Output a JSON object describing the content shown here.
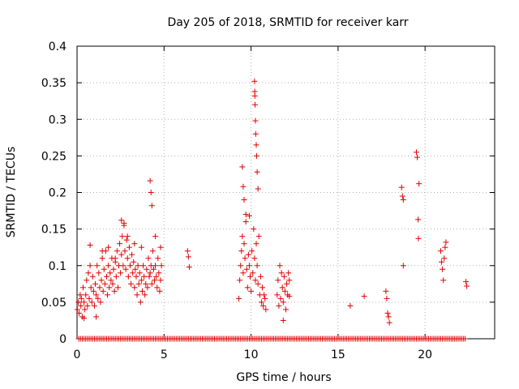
{
  "chart_data": {
    "type": "scatter",
    "title": "Day 205 of 2018, SRMTID for receiver karr",
    "xlabel": "GPS time / hours",
    "ylabel": "SRMTID / TECUs",
    "xlim": [
      0,
      24
    ],
    "ylim": [
      0,
      0.4
    ],
    "xticks": [
      0,
      5,
      10,
      15,
      20
    ],
    "xtick_labels": [
      "0",
      "5",
      "10",
      "15",
      "20"
    ],
    "yticks": [
      0,
      0.05,
      0.1,
      0.15,
      0.2,
      0.25,
      0.3,
      0.35,
      0.4
    ],
    "ytick_labels": [
      "0",
      "0.05",
      "0.1",
      "0.15",
      "0.2",
      "0.25",
      "0.3",
      "0.35",
      "0.4"
    ],
    "grid": true,
    "marker": "+",
    "color": "#e00000",
    "series": [
      {
        "name": "SRMTID",
        "x": [
          0.02,
          0.08,
          0.12,
          0.18,
          0.22,
          0.25,
          0.3,
          0.35,
          0.4,
          0.45,
          0.5,
          0.55,
          0.6,
          0.65,
          0.7,
          0.75,
          0.8,
          0.85,
          0.9,
          0.95,
          1.0,
          1.05,
          1.1,
          1.15,
          1.2,
          1.25,
          1.3,
          1.35,
          1.4,
          1.45,
          1.5,
          1.55,
          1.6,
          1.65,
          1.7,
          1.75,
          1.8,
          1.85,
          1.9,
          1.95,
          2.0,
          2.05,
          2.1,
          2.15,
          2.2,
          2.25,
          2.3,
          2.35,
          2.4,
          2.45,
          2.5,
          2.55,
          2.6,
          2.65,
          2.7,
          2.75,
          2.8,
          2.85,
          2.9,
          2.95,
          3.0,
          3.05,
          3.1,
          3.15,
          3.2,
          3.25,
          3.3,
          3.35,
          3.4,
          3.45,
          3.5,
          3.55,
          3.6,
          3.65,
          3.7,
          3.75,
          3.8,
          3.85,
          3.9,
          3.95,
          4.0,
          4.05,
          4.1,
          4.15,
          4.2,
          4.25,
          4.3,
          4.35,
          4.4,
          4.45,
          4.5,
          4.55,
          4.6,
          4.65,
          4.7,
          4.75,
          4.8,
          4.85,
          0.4,
          0.75,
          1.1,
          1.45,
          1.8,
          2.2,
          2.55,
          2.7,
          2.9,
          3.3,
          3.7,
          4.2,
          4.25,
          4.3,
          4.5,
          4.8,
          6.35,
          6.4,
          6.45,
          9.3,
          9.35,
          9.4,
          9.45,
          9.5,
          9.55,
          9.6,
          9.65,
          9.7,
          9.75,
          9.8,
          9.85,
          9.9,
          9.95,
          10.0,
          10.05,
          10.1,
          10.15,
          10.2,
          10.25,
          10.3,
          10.35,
          10.4,
          10.45,
          10.5,
          10.55,
          10.6,
          10.65,
          10.7,
          10.75,
          10.8,
          10.85,
          9.5,
          9.55,
          9.6,
          9.7,
          9.9,
          10.2,
          10.21,
          10.22,
          10.23,
          10.25,
          10.27,
          10.3,
          10.32,
          10.35,
          10.4,
          11.5,
          11.55,
          11.6,
          11.65,
          11.7,
          11.75,
          11.8,
          11.85,
          11.9,
          11.95,
          12.0,
          12.05,
          12.1,
          12.15,
          12.2,
          11.85,
          12.2,
          15.7,
          16.5,
          17.75,
          17.8,
          17.85,
          17.9,
          17.95,
          18.65,
          18.7,
          18.75,
          18.75,
          19.5,
          19.55,
          19.6,
          19.62,
          19.65,
          20.9,
          20.95,
          21.0,
          21.05,
          21.1,
          21.15,
          21.2,
          22.35,
          22.4
        ],
        "y": [
          0.04,
          0.05,
          0.035,
          0.06,
          0.045,
          0.055,
          0.03,
          0.07,
          0.05,
          0.04,
          0.06,
          0.08,
          0.045,
          0.09,
          0.055,
          0.1,
          0.07,
          0.05,
          0.085,
          0.065,
          0.045,
          0.075,
          0.06,
          0.1,
          0.055,
          0.09,
          0.07,
          0.05,
          0.08,
          0.11,
          0.065,
          0.095,
          0.075,
          0.12,
          0.085,
          0.06,
          0.1,
          0.07,
          0.09,
          0.08,
          0.11,
          0.075,
          0.095,
          0.065,
          0.105,
          0.085,
          0.12,
          0.07,
          0.1,
          0.13,
          0.09,
          0.115,
          0.14,
          0.1,
          0.155,
          0.12,
          0.095,
          0.135,
          0.11,
          0.085,
          0.125,
          0.1,
          0.075,
          0.115,
          0.09,
          0.105,
          0.07,
          0.095,
          0.085,
          0.06,
          0.1,
          0.075,
          0.09,
          0.05,
          0.08,
          0.065,
          0.1,
          0.085,
          0.06,
          0.075,
          0.095,
          0.07,
          0.11,
          0.085,
          0.09,
          0.1,
          0.075,
          0.12,
          0.095,
          0.08,
          0.1,
          0.085,
          0.07,
          0.11,
          0.09,
          0.065,
          0.08,
          0.1,
          0.028,
          0.128,
          0.03,
          0.12,
          0.125,
          0.11,
          0.162,
          0.158,
          0.14,
          0.13,
          0.125,
          0.216,
          0.2,
          0.182,
          0.14,
          0.125,
          0.12,
          0.112,
          0.098,
          0.055,
          0.08,
          0.1,
          0.12,
          0.14,
          0.09,
          0.13,
          0.11,
          0.16,
          0.095,
          0.07,
          0.115,
          0.1,
          0.085,
          0.065,
          0.12,
          0.09,
          0.15,
          0.11,
          0.08,
          0.13,
          0.1,
          0.075,
          0.14,
          0.06,
          0.085,
          0.05,
          0.07,
          0.045,
          0.06,
          0.055,
          0.04,
          0.235,
          0.208,
          0.19,
          0.17,
          0.168,
          0.352,
          0.338,
          0.332,
          0.32,
          0.298,
          0.28,
          0.265,
          0.25,
          0.228,
          0.205,
          0.06,
          0.08,
          0.045,
          0.1,
          0.055,
          0.09,
          0.07,
          0.05,
          0.085,
          0.065,
          0.04,
          0.075,
          0.06,
          0.09,
          0.08,
          0.025,
          0.058,
          0.045,
          0.058,
          0.065,
          0.055,
          0.035,
          0.03,
          0.022,
          0.207,
          0.195,
          0.19,
          0.1,
          0.255,
          0.248,
          0.163,
          0.137,
          0.212,
          0.12,
          0.105,
          0.095,
          0.08,
          0.11,
          0.125,
          0.132,
          0.078,
          0.072
        ],
        "zero_x": [
          0.1,
          0.2,
          0.3,
          0.4,
          0.5,
          0.6,
          0.7,
          0.8,
          0.9,
          1.0,
          1.1,
          1.2,
          1.3,
          1.4,
          1.5,
          1.6,
          1.7,
          1.8,
          1.9,
          2.0,
          2.1,
          2.2,
          2.3,
          2.4,
          2.5,
          2.6,
          2.7,
          2.8,
          2.9,
          3.0,
          3.1,
          3.2,
          3.3,
          3.4,
          3.5,
          3.6,
          3.7,
          3.8,
          3.9,
          4.0,
          4.1,
          4.2,
          4.3,
          4.4,
          4.5,
          4.6,
          4.7,
          4.8,
          4.9,
          5.0,
          5.1,
          5.2,
          5.3,
          5.4,
          5.5,
          5.6,
          5.7,
          5.8,
          5.9,
          6.0,
          6.1,
          6.2,
          6.3,
          6.4,
          6.5,
          6.6,
          6.7,
          6.8,
          6.9,
          7.0,
          7.1,
          7.2,
          7.3,
          7.4,
          7.5,
          7.6,
          7.7,
          7.8,
          7.9,
          8.0,
          8.1,
          8.2,
          8.3,
          8.4,
          8.5,
          8.6,
          8.7,
          8.8,
          8.9,
          9.0,
          9.1,
          9.2,
          9.3,
          9.4,
          9.5,
          9.6,
          9.7,
          9.8,
          9.9,
          10.0,
          10.1,
          10.2,
          10.3,
          10.4,
          10.5,
          10.6,
          10.7,
          10.8,
          10.9,
          11.0,
          11.1,
          11.2,
          11.3,
          11.4,
          11.5,
          11.6,
          11.7,
          11.8,
          11.9,
          12.0,
          12.1,
          12.2,
          12.3,
          12.4,
          12.5,
          12.6,
          12.7,
          12.8,
          12.9,
          13.0,
          13.1,
          13.2,
          13.3,
          13.4,
          13.5,
          13.6,
          13.7,
          13.8,
          13.9,
          14.0,
          14.1,
          14.2,
          14.3,
          14.4,
          14.5,
          14.6,
          14.7,
          14.8,
          14.9,
          15.0,
          15.1,
          15.2,
          15.3,
          15.4,
          15.5,
          15.6,
          15.7,
          15.8,
          15.9,
          16.0,
          16.1,
          16.2,
          16.3,
          16.4,
          16.5,
          16.6,
          16.7,
          16.8,
          16.9,
          17.0,
          17.1,
          17.2,
          17.3,
          17.4,
          17.5,
          17.6,
          17.7,
          17.8,
          17.9,
          18.0,
          18.1,
          18.2,
          18.3,
          18.4,
          18.5,
          18.6,
          18.7,
          18.8,
          18.9,
          19.0,
          19.1,
          19.2,
          19.3,
          19.4,
          19.5,
          19.6,
          19.7,
          19.8,
          19.9,
          20.0,
          20.1,
          20.2,
          20.3,
          20.4,
          20.5,
          20.6,
          20.7,
          20.8,
          20.9,
          21.0,
          21.1,
          21.2,
          21.3,
          21.4,
          21.5,
          21.6,
          21.7,
          21.8,
          21.9,
          22.0,
          22.1,
          22.2,
          22.3
        ]
      }
    ]
  }
}
